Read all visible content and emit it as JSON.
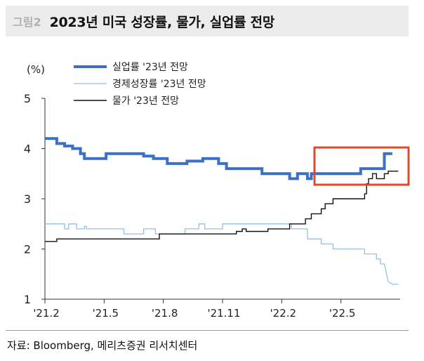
{
  "header": {
    "tag": "그림2",
    "title": "2023년 미국 성장률, 물가, 실업률 전망"
  },
  "source": "자료: Bloomberg, 메리츠증권 리서치센터",
  "chart_data": {
    "type": "line",
    "unit_label": "(%)",
    "x_ticks": [
      "'21.2",
      "'21.5",
      "'21.8",
      "'21.11",
      "'22.2",
      "'22.5"
    ],
    "x_range": [
      0,
      18
    ],
    "ylim": [
      1,
      5
    ],
    "y_ticks": [
      1,
      2,
      3,
      4,
      5
    ],
    "legend_position": "top-center",
    "highlight_box_color": "#e0492c",
    "series": [
      {
        "name": "실업률 '23년 전망",
        "color": "#3a70c6",
        "width": 4,
        "points": [
          [
            0,
            4.2
          ],
          [
            0.6,
            4.2
          ],
          [
            0.6,
            4.1
          ],
          [
            1,
            4.1
          ],
          [
            1,
            4.05
          ],
          [
            1.4,
            4.05
          ],
          [
            1.4,
            4.0
          ],
          [
            1.8,
            4.0
          ],
          [
            1.8,
            3.9
          ],
          [
            2.0,
            3.9
          ],
          [
            2.0,
            3.8
          ],
          [
            3.1,
            3.8
          ],
          [
            3.1,
            3.9
          ],
          [
            5.0,
            3.9
          ],
          [
            5.0,
            3.85
          ],
          [
            5.5,
            3.85
          ],
          [
            5.5,
            3.8
          ],
          [
            6.2,
            3.8
          ],
          [
            6.2,
            3.7
          ],
          [
            7.2,
            3.7
          ],
          [
            7.2,
            3.75
          ],
          [
            8.0,
            3.75
          ],
          [
            8.0,
            3.8
          ],
          [
            8.8,
            3.8
          ],
          [
            8.8,
            3.7
          ],
          [
            9.2,
            3.7
          ],
          [
            9.2,
            3.6
          ],
          [
            10.3,
            3.6
          ],
          [
            10.3,
            3.6
          ],
          [
            10.5,
            3.6
          ],
          [
            10.5,
            3.6
          ],
          [
            11.0,
            3.6
          ],
          [
            11.0,
            3.5
          ],
          [
            12.4,
            3.5
          ],
          [
            12.4,
            3.4
          ],
          [
            12.8,
            3.4
          ],
          [
            12.8,
            3.5
          ],
          [
            13.3,
            3.5
          ],
          [
            13.3,
            3.4
          ],
          [
            13.5,
            3.4
          ],
          [
            13.5,
            3.5
          ],
          [
            16.0,
            3.5
          ],
          [
            16.0,
            3.6
          ],
          [
            17.2,
            3.6
          ],
          [
            17.2,
            3.9
          ],
          [
            17.6,
            3.9
          ]
        ]
      },
      {
        "name": "경제성장률 '23년 전망",
        "color": "#93c0e8",
        "width": 1.3,
        "points": [
          [
            0,
            2.5
          ],
          [
            1.0,
            2.5
          ],
          [
            1.0,
            2.4
          ],
          [
            1.2,
            2.4
          ],
          [
            1.2,
            2.5
          ],
          [
            1.6,
            2.5
          ],
          [
            1.6,
            2.4
          ],
          [
            2.0,
            2.4
          ],
          [
            2.0,
            2.45
          ],
          [
            2.1,
            2.45
          ],
          [
            2.1,
            2.4
          ],
          [
            3.0,
            2.4
          ],
          [
            3.0,
            2.4
          ],
          [
            4.0,
            2.4
          ],
          [
            4.0,
            2.3
          ],
          [
            5.0,
            2.3
          ],
          [
            5.0,
            2.4
          ],
          [
            5.6,
            2.4
          ],
          [
            5.6,
            2.3
          ],
          [
            7.1,
            2.3
          ],
          [
            7.1,
            2.4
          ],
          [
            7.8,
            2.4
          ],
          [
            7.8,
            2.5
          ],
          [
            8.1,
            2.5
          ],
          [
            8.1,
            2.4
          ],
          [
            9.0,
            2.4
          ],
          [
            9.0,
            2.5
          ],
          [
            12.5,
            2.5
          ],
          [
            12.5,
            2.4
          ],
          [
            13.3,
            2.4
          ],
          [
            13.3,
            2.2
          ],
          [
            14.0,
            2.2
          ],
          [
            14.0,
            2.1
          ],
          [
            14.6,
            2.1
          ],
          [
            14.6,
            2.0
          ],
          [
            16.2,
            2.0
          ],
          [
            16.2,
            1.9
          ],
          [
            16.8,
            1.9
          ],
          [
            16.8,
            1.8
          ],
          [
            17.0,
            1.8
          ],
          [
            17.0,
            1.7
          ],
          [
            17.2,
            1.7
          ],
          [
            17.4,
            1.35
          ],
          [
            17.6,
            1.3
          ],
          [
            17.9,
            1.3
          ]
        ]
      },
      {
        "name": "물가 '23년 전망",
        "color": "#111111",
        "width": 1.4,
        "points": [
          [
            0,
            2.15
          ],
          [
            0.6,
            2.15
          ],
          [
            0.6,
            2.2
          ],
          [
            5.8,
            2.2
          ],
          [
            5.8,
            2.3
          ],
          [
            9.2,
            2.3
          ],
          [
            9.2,
            2.3
          ],
          [
            9.7,
            2.3
          ],
          [
            9.7,
            2.35
          ],
          [
            10.0,
            2.35
          ],
          [
            10.0,
            2.4
          ],
          [
            10.2,
            2.4
          ],
          [
            10.2,
            2.35
          ],
          [
            11.3,
            2.35
          ],
          [
            11.3,
            2.4
          ],
          [
            12.4,
            2.4
          ],
          [
            12.4,
            2.5
          ],
          [
            13.2,
            2.5
          ],
          [
            13.2,
            2.6
          ],
          [
            13.5,
            2.6
          ],
          [
            13.5,
            2.7
          ],
          [
            14.0,
            2.7
          ],
          [
            14.0,
            2.8
          ],
          [
            14.2,
            2.8
          ],
          [
            14.2,
            2.9
          ],
          [
            14.6,
            2.9
          ],
          [
            14.6,
            3.0
          ],
          [
            16.2,
            3.0
          ],
          [
            16.2,
            3.1
          ],
          [
            16.3,
            3.1
          ],
          [
            16.3,
            3.3
          ],
          [
            16.4,
            3.3
          ],
          [
            16.4,
            3.4
          ],
          [
            16.6,
            3.4
          ],
          [
            16.6,
            3.5
          ],
          [
            16.8,
            3.5
          ],
          [
            16.8,
            3.4
          ],
          [
            17.2,
            3.4
          ],
          [
            17.2,
            3.5
          ],
          [
            17.4,
            3.5
          ],
          [
            17.4,
            3.55
          ],
          [
            17.9,
            3.55
          ]
        ]
      }
    ]
  }
}
